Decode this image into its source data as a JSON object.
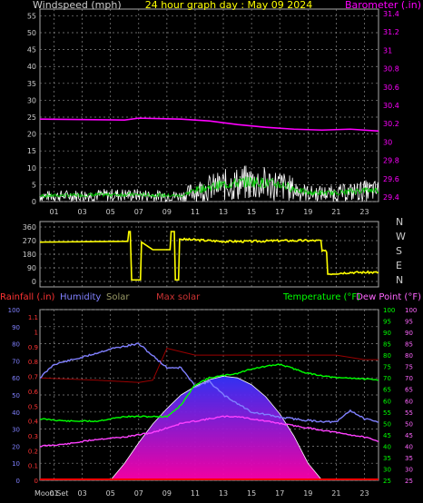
{
  "top": {
    "title": "24 hour graph day : May 09 2024",
    "left_label": "Windspeed (mph)",
    "right_label": "Barometer (.in)",
    "left_ticks": [
      "55",
      "50",
      "45",
      "40",
      "35",
      "30",
      "25",
      "20",
      "15",
      "10",
      "5",
      "0"
    ],
    "right_ticks": [
      "31.4",
      "31.2",
      "31",
      "30.8",
      "30.6",
      "30.4",
      "30.2",
      "30",
      "29.8",
      "29.6",
      "29.4"
    ],
    "x_ticks": [
      "01",
      "03",
      "05",
      "07",
      "09",
      "11",
      "13",
      "15",
      "17",
      "19",
      "21",
      "23"
    ]
  },
  "mid": {
    "left_ticks": [
      "360",
      "270",
      "180",
      "90",
      "0"
    ],
    "compass": [
      "N",
      "W",
      "S",
      "E",
      "N"
    ]
  },
  "bottom": {
    "rain_label": "Rainfall (.in)",
    "humidity_label": "Humidity",
    "solar_label": "Solar",
    "maxsolar_label": "Max solar",
    "temp_label": "Temperature (°F)",
    "dew_label": "Dew Point (°F)",
    "hum_ticks": [
      "100",
      "90",
      "80",
      "70",
      "60",
      "50",
      "40",
      "30",
      "20",
      "10",
      "0"
    ],
    "rain_ticks": [
      "1.1",
      "1",
      "0.9",
      "0.8",
      "0.7",
      "0.6",
      "0.5",
      "0.4",
      "0.3",
      "0.2",
      "0.1",
      "0"
    ],
    "temp_ticks": [
      "100",
      "95",
      "90",
      "85",
      "80",
      "75",
      "70",
      "65",
      "60",
      "55",
      "50",
      "45",
      "40",
      "35",
      "30",
      "25"
    ],
    "dew_ticks": [
      "100",
      "95",
      "90",
      "85",
      "80",
      "75",
      "70",
      "65",
      "60",
      "55",
      "50",
      "45",
      "40",
      "35",
      "30",
      "25"
    ],
    "moon_label": "Moon Set",
    "x_ticks": [
      "01",
      "03",
      "05",
      "07",
      "09",
      "11",
      "13",
      "15",
      "17",
      "19",
      "21",
      "23"
    ]
  },
  "colors": {
    "wind": "#ffffff",
    "gust": "#00cc00",
    "baro": "#ff00ff",
    "dir": "#ffff00",
    "humidity": "#8080ff",
    "temp": "#00ff00",
    "dew": "#ff40ff",
    "maxsolar": "#990000",
    "rain": "#ff0000",
    "solar_top": "#3333ff",
    "solar_bottom": "#ff00aa"
  },
  "chart_data": [
    {
      "type": "line",
      "x_range": [
        0,
        24
      ],
      "series": [
        {
          "name": "Barometer",
          "axis": "right",
          "points": [
            [
              0,
              30.25
            ],
            [
              6,
              30.24
            ],
            [
              7,
              30.26
            ],
            [
              10,
              30.25
            ],
            [
              12,
              30.23
            ],
            [
              14,
              30.19
            ],
            [
              16,
              30.16
            ],
            [
              18,
              30.14
            ],
            [
              20,
              30.13
            ],
            [
              22,
              30.14
            ],
            [
              24,
              30.12
            ]
          ]
        },
        {
          "name": "Windspeed",
          "axis": "left",
          "points": [
            [
              0,
              2
            ],
            [
              6,
              2.5
            ],
            [
              10,
              2
            ],
            [
              11,
              4
            ],
            [
              13,
              6
            ],
            [
              15,
              7
            ],
            [
              17,
              6
            ],
            [
              19,
              3
            ],
            [
              21,
              3
            ],
            [
              23,
              4
            ],
            [
              24,
              4
            ]
          ]
        }
      ],
      "ylim_left": [
        0,
        57
      ],
      "ylim_right": [
        29.35,
        31.45
      ]
    },
    {
      "type": "line",
      "x_range": [
        0,
        24
      ],
      "series": [
        {
          "name": "Wind direction",
          "points": [
            [
              0,
              260
            ],
            [
              6,
              265
            ],
            [
              6.3,
              330
            ],
            [
              6.5,
              10
            ],
            [
              6.9,
              10
            ],
            [
              7.2,
              260
            ],
            [
              8,
              210
            ],
            [
              9,
              210
            ],
            [
              9.3,
              330
            ],
            [
              9.6,
              10
            ],
            [
              9.9,
              280
            ],
            [
              11,
              275
            ],
            [
              13,
              265
            ],
            [
              15,
              265
            ],
            [
              17,
              270
            ],
            [
              19,
              270
            ],
            [
              20,
              200
            ],
            [
              20.4,
              50
            ],
            [
              22,
              60
            ],
            [
              24,
              60
            ]
          ]
        }
      ],
      "ylim": [
        0,
        360
      ]
    },
    {
      "type": "line",
      "x_range": [
        0,
        24
      ],
      "series": [
        {
          "name": "Humidity",
          "axis": "humidity",
          "points": [
            [
              0,
              60
            ],
            [
              1,
              68
            ],
            [
              3,
              72
            ],
            [
              5,
              77
            ],
            [
              7,
              80
            ],
            [
              8,
              73
            ],
            [
              9,
              66
            ],
            [
              10,
              66
            ],
            [
              11,
              55
            ],
            [
              12,
              58
            ],
            [
              13,
              50
            ],
            [
              14,
              45
            ],
            [
              15,
              40
            ],
            [
              17,
              37
            ],
            [
              19,
              35
            ],
            [
              21,
              34
            ],
            [
              22,
              41
            ],
            [
              23,
              36
            ],
            [
              24,
              34
            ]
          ]
        },
        {
          "name": "Temperature",
          "axis": "temp",
          "points": [
            [
              0,
              52
            ],
            [
              2,
              51
            ],
            [
              4,
              51
            ],
            [
              6,
              53
            ],
            [
              7,
              53
            ],
            [
              8,
              53
            ],
            [
              9,
              53
            ],
            [
              10,
              58
            ],
            [
              11,
              67
            ],
            [
              12,
              70
            ],
            [
              13,
              71
            ],
            [
              14,
              72
            ],
            [
              15,
              74
            ],
            [
              16,
              75
            ],
            [
              17,
              76
            ],
            [
              18,
              74
            ],
            [
              19,
              72
            ],
            [
              20,
              71
            ],
            [
              21,
              70
            ],
            [
              22,
              70
            ],
            [
              24,
              69
            ]
          ]
        },
        {
          "name": "Dew Point",
          "axis": "temp",
          "points": [
            [
              0,
              40
            ],
            [
              2,
              41
            ],
            [
              4,
              43
            ],
            [
              6,
              44
            ],
            [
              7,
              45
            ],
            [
              8,
              46
            ],
            [
              9,
              48
            ],
            [
              10,
              50
            ],
            [
              11,
              51
            ],
            [
              12,
              52
            ],
            [
              13,
              53
            ],
            [
              14,
              53
            ],
            [
              15,
              52
            ],
            [
              16,
              51
            ],
            [
              17,
              50
            ],
            [
              18,
              49
            ],
            [
              19,
              48
            ],
            [
              20,
              47
            ],
            [
              21,
              46
            ],
            [
              22,
              45
            ],
            [
              23,
              44
            ],
            [
              24,
              42
            ]
          ]
        },
        {
          "name": "Max solar",
          "axis": "temp",
          "points": [
            [
              0,
              70
            ],
            [
              4,
              69
            ],
            [
              7,
              68
            ],
            [
              8,
              69
            ],
            [
              9,
              83
            ],
            [
              11,
              80
            ],
            [
              13,
              80
            ],
            [
              15,
              80
            ],
            [
              17,
              80
            ],
            [
              19,
              80
            ],
            [
              21,
              80
            ],
            [
              23,
              78
            ],
            [
              24,
              78
            ]
          ]
        },
        {
          "name": "Solar",
          "axis": "humidity",
          "points": [
            [
              5,
              0
            ],
            [
              6,
              10
            ],
            [
              7,
              22
            ],
            [
              8,
              33
            ],
            [
              9,
              42
            ],
            [
              10,
              50
            ],
            [
              11,
              55
            ],
            [
              12,
              59
            ],
            [
              13,
              61
            ],
            [
              14,
              60
            ],
            [
              15,
              56
            ],
            [
              16,
              49
            ],
            [
              17,
              39
            ],
            [
              18,
              26
            ],
            [
              19,
              10
            ],
            [
              20,
              0
            ]
          ]
        },
        {
          "name": "Rainfall",
          "axis": "rain",
          "points": [
            [
              0,
              0
            ],
            [
              24,
              0
            ]
          ]
        }
      ],
      "ylim_humidity": [
        0,
        100
      ],
      "ylim_temp": [
        25,
        100
      ],
      "ylim_rain": [
        0,
        1.15
      ]
    }
  ]
}
